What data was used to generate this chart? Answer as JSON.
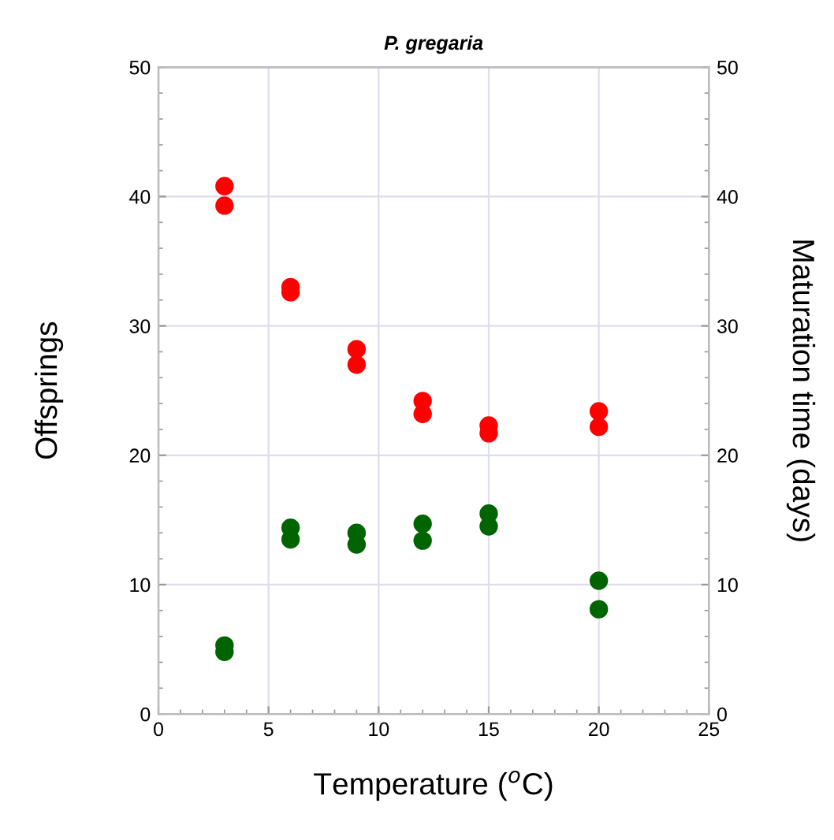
{
  "chart_data": {
    "type": "scatter",
    "title": "P. gregaria",
    "xlabel": "Temperature ($^{o}$C)",
    "ylabel": "Offsprings",
    "y2label": "Maturation time (days)",
    "series": [
      {
        "color": "#ff0000",
        "x": [
          3,
          3,
          6,
          6,
          9,
          9,
          12,
          12,
          15,
          15,
          20,
          20
        ],
        "values": [
          40.8,
          39.3,
          33.0,
          32.6,
          28.2,
          27.0,
          24.2,
          23.2,
          22.3,
          21.7,
          23.4,
          22.2
        ]
      },
      {
        "color": "#006400",
        "x": [
          3,
          3,
          6,
          6,
          9,
          9,
          12,
          12,
          15,
          15,
          20,
          20
        ],
        "values": [
          5.3,
          4.8,
          14.4,
          13.5,
          14.0,
          13.1,
          14.7,
          13.4,
          15.5,
          14.5,
          10.3,
          8.1
        ]
      }
    ],
    "xlim": [
      0,
      25
    ],
    "xticks": [
      0,
      5,
      10,
      15,
      20,
      25
    ],
    "ylim": [
      0,
      50
    ],
    "yticks": [
      0,
      10,
      20,
      30,
      40,
      50
    ],
    "y2lim": [
      0,
      50
    ],
    "y2ticks": [
      0,
      10,
      20,
      30,
      40,
      50
    ],
    "grid": true,
    "marker": "circle"
  }
}
